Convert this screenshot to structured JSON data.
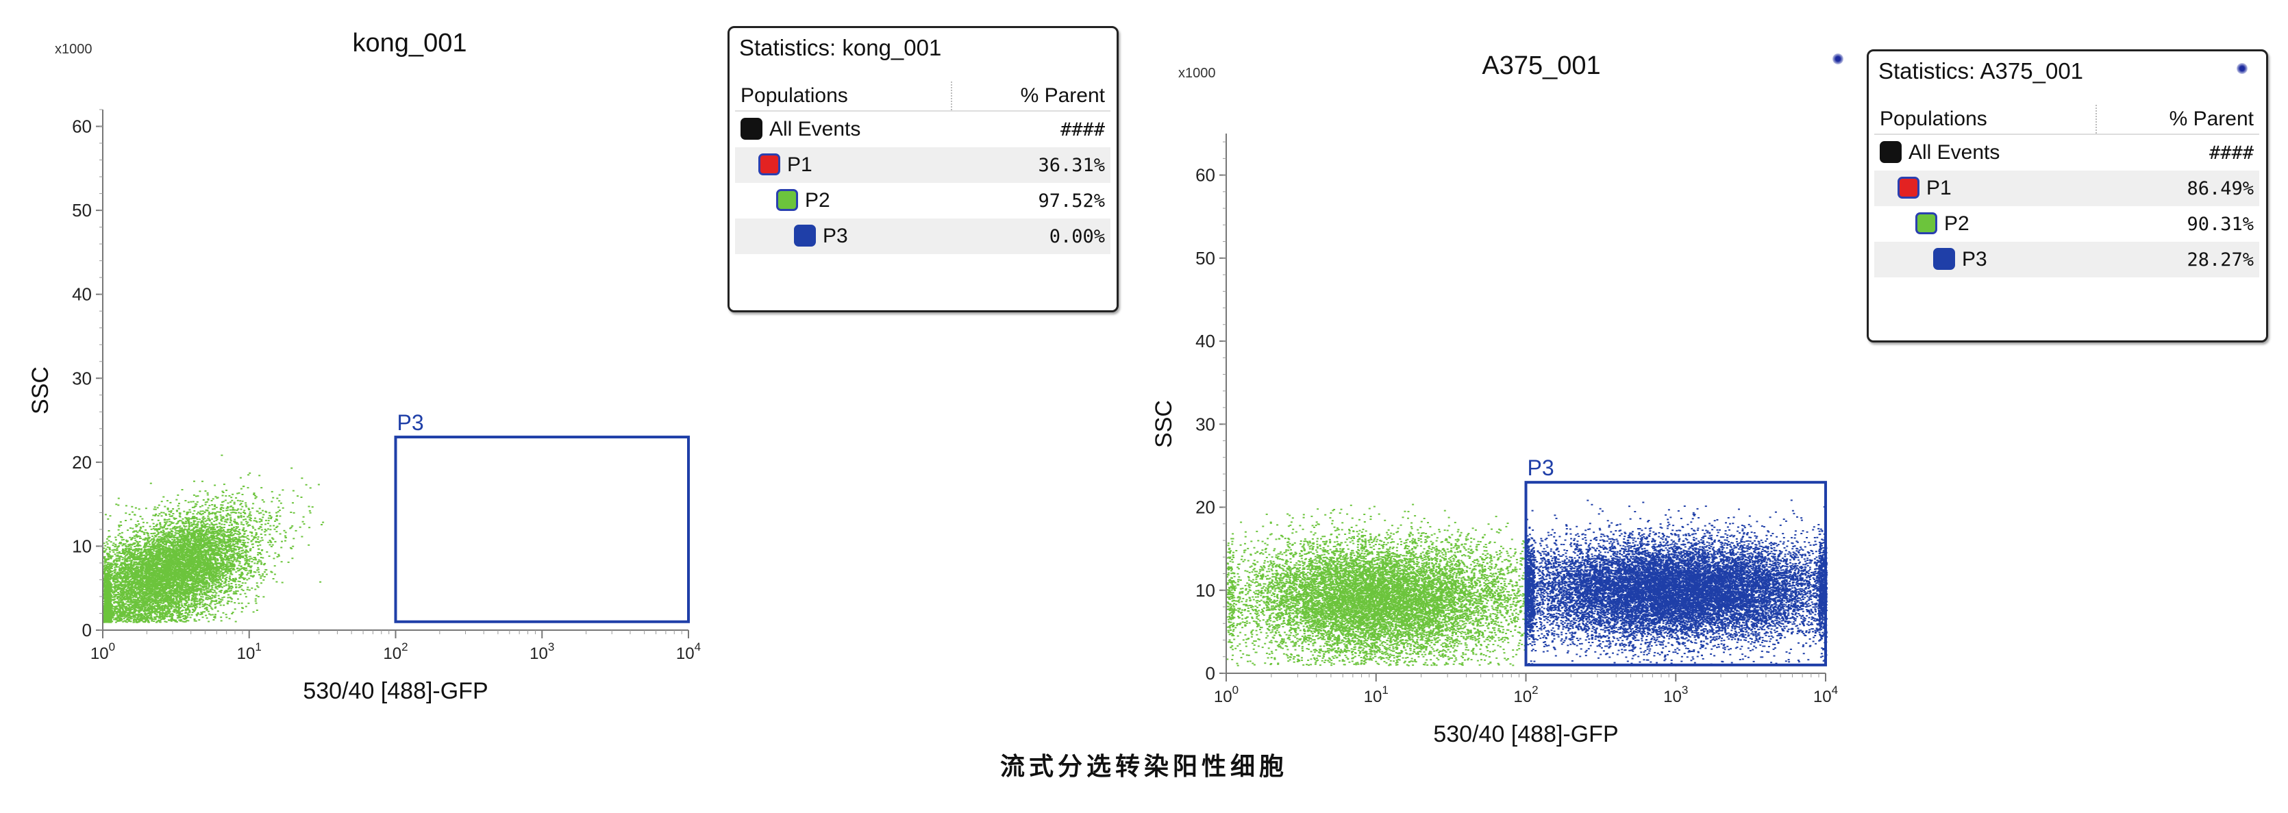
{
  "caption": "流式分选转染阳性细胞",
  "colors": {
    "events_green": "#6cc43c",
    "gate_blue": "#1f3fa8",
    "p1_red": "#e32222",
    "p2_green": "#6cc43c",
    "p3_blue": "#1f3fa8",
    "all_black": "#111111"
  },
  "chart_data": [
    {
      "type": "scatter",
      "title": "kong_001",
      "xlabel": "530/40 [488]-GFP",
      "ylabel": "SSC",
      "yscale_note": "x1000",
      "xscale": "log",
      "xlim": [
        1,
        10000
      ],
      "ylim": [
        0,
        62
      ],
      "xticks": [
        {
          "v": 1,
          "b": "10",
          "e": "0"
        },
        {
          "v": 10,
          "b": "10",
          "e": "1"
        },
        {
          "v": 100,
          "b": "10",
          "e": "2"
        },
        {
          "v": 1000,
          "b": "10",
          "e": "3"
        },
        {
          "v": 10000,
          "b": "10",
          "e": "4"
        }
      ],
      "yticks": [
        0,
        10,
        20,
        30,
        40,
        50,
        60
      ],
      "gate": {
        "label": "P3",
        "x": [
          100,
          10000
        ],
        "y": [
          1,
          23
        ]
      },
      "series": [
        {
          "name": "P2",
          "color": "#6cc43c",
          "count": 9000,
          "logx_mean": 0.45,
          "logx_sd": 0.3,
          "y_mean": 7,
          "y_sd": 3,
          "logx_max": 1.5,
          "y_max": 21
        }
      ]
    },
    {
      "type": "scatter",
      "title": "A375_001",
      "xlabel": "530/40 [488]-GFP",
      "ylabel": "SSC",
      "yscale_note": "x1000",
      "xscale": "log",
      "xlim": [
        1,
        10000
      ],
      "ylim": [
        0,
        65
      ],
      "xticks": [
        {
          "v": 1,
          "b": "10",
          "e": "0"
        },
        {
          "v": 10,
          "b": "10",
          "e": "1"
        },
        {
          "v": 100,
          "b": "10",
          "e": "2"
        },
        {
          "v": 1000,
          "b": "10",
          "e": "3"
        },
        {
          "v": 10000,
          "b": "10",
          "e": "4"
        }
      ],
      "yticks": [
        0,
        10,
        20,
        30,
        40,
        50,
        60
      ],
      "gate": {
        "label": "P3",
        "x": [
          100,
          10000
        ],
        "y": [
          1,
          23
        ]
      },
      "series": [
        {
          "name": "P2",
          "color": "#6cc43c",
          "count": 11000,
          "logx_mean": 1.0,
          "logx_sd": 0.45,
          "y_mean": 9,
          "y_sd": 3.5,
          "logx_max": 2.0,
          "y_max": 21
        },
        {
          "name": "P3",
          "color": "#1f3fa8",
          "count": 16000,
          "logx_mean": 3.0,
          "logx_sd": 0.55,
          "y_mean": 10,
          "y_sd": 3,
          "logx_min": 2.0,
          "y_max": 21
        }
      ]
    }
  ],
  "stats": [
    {
      "title": "Statistics: kong_001",
      "col_populations": "Populations",
      "col_parent": "% Parent",
      "rows": [
        {
          "name": "All Events",
          "value": "####",
          "color": "#111111"
        },
        {
          "name": "P1",
          "value": "36.31%",
          "color": "#e32222"
        },
        {
          "name": "P2",
          "value": "97.52%",
          "color": "#6cc43c"
        },
        {
          "name": "P3",
          "value": "0.00%",
          "color": "#1f3fa8"
        }
      ]
    },
    {
      "title": "Statistics: A375_001",
      "col_populations": "Populations",
      "col_parent": "% Parent",
      "rows": [
        {
          "name": "All Events",
          "value": "####",
          "color": "#111111"
        },
        {
          "name": "P1",
          "value": "86.49%",
          "color": "#e32222"
        },
        {
          "name": "P2",
          "value": "90.31%",
          "color": "#6cc43c"
        },
        {
          "name": "P3",
          "value": "28.27%",
          "color": "#1f3fa8"
        }
      ]
    }
  ]
}
